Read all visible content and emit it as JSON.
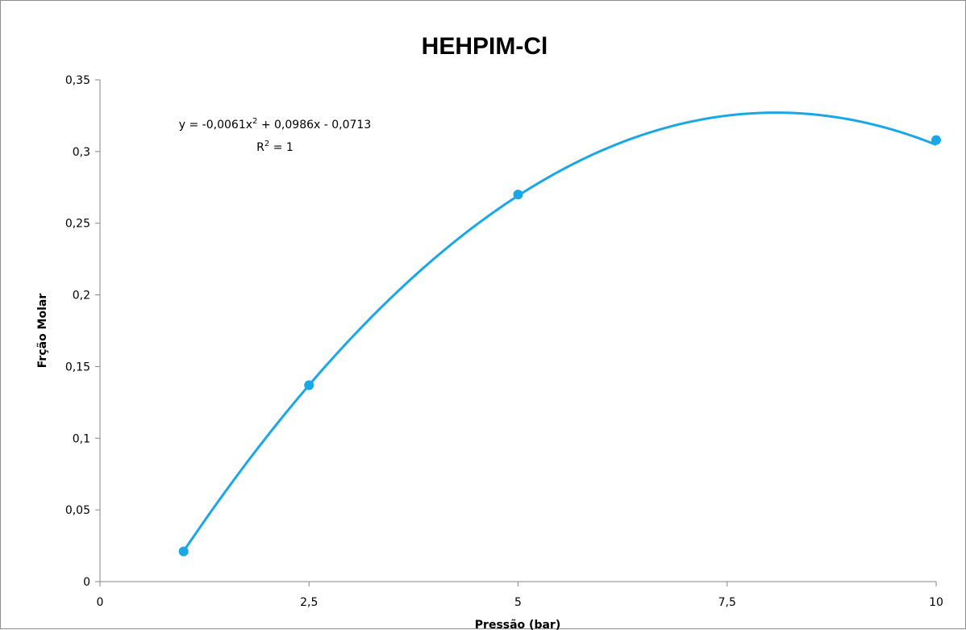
{
  "chart_data": {
    "type": "scatter",
    "title": "HEHPIM-Cl",
    "xlabel": "Pressão (bar)",
    "ylabel": "Frção Molar",
    "xlim": [
      0,
      10
    ],
    "ylim": [
      0,
      0.35
    ],
    "x_ticks": [
      {
        "value": 0,
        "label": "0"
      },
      {
        "value": 2.5,
        "label": "2,5"
      },
      {
        "value": 5,
        "label": "5"
      },
      {
        "value": 7.5,
        "label": "7,5"
      },
      {
        "value": 10,
        "label": "10"
      }
    ],
    "y_ticks": [
      {
        "value": 0,
        "label": "0"
      },
      {
        "value": 0.05,
        "label": "0,05"
      },
      {
        "value": 0.1,
        "label": "0,1"
      },
      {
        "value": 0.15,
        "label": "0,15"
      },
      {
        "value": 0.2,
        "label": "0,2"
      },
      {
        "value": 0.25,
        "label": "0,25"
      },
      {
        "value": 0.3,
        "label": "0,3"
      },
      {
        "value": 0.35,
        "label": "0,35"
      }
    ],
    "series": [
      {
        "points": [
          {
            "x": 1,
            "y": 0.021
          },
          {
            "x": 2.5,
            "y": 0.137
          },
          {
            "x": 5,
            "y": 0.27
          },
          {
            "x": 10,
            "y": 0.308
          }
        ],
        "color": "#1aa7e8",
        "trendline": {
          "type": "polynomial",
          "coefficients": [
            -0.0061,
            0.0986,
            -0.0713
          ],
          "x_range": [
            1,
            10
          ],
          "equation_label": "y = -0,0061x",
          "equation_superscript": "2",
          "equation_rest": " + 0,0986x - 0,0713",
          "r2_label": "R",
          "r2_superscript": "2",
          "r2_rest": " = 1"
        }
      }
    ],
    "grid": false,
    "legend": "none"
  }
}
